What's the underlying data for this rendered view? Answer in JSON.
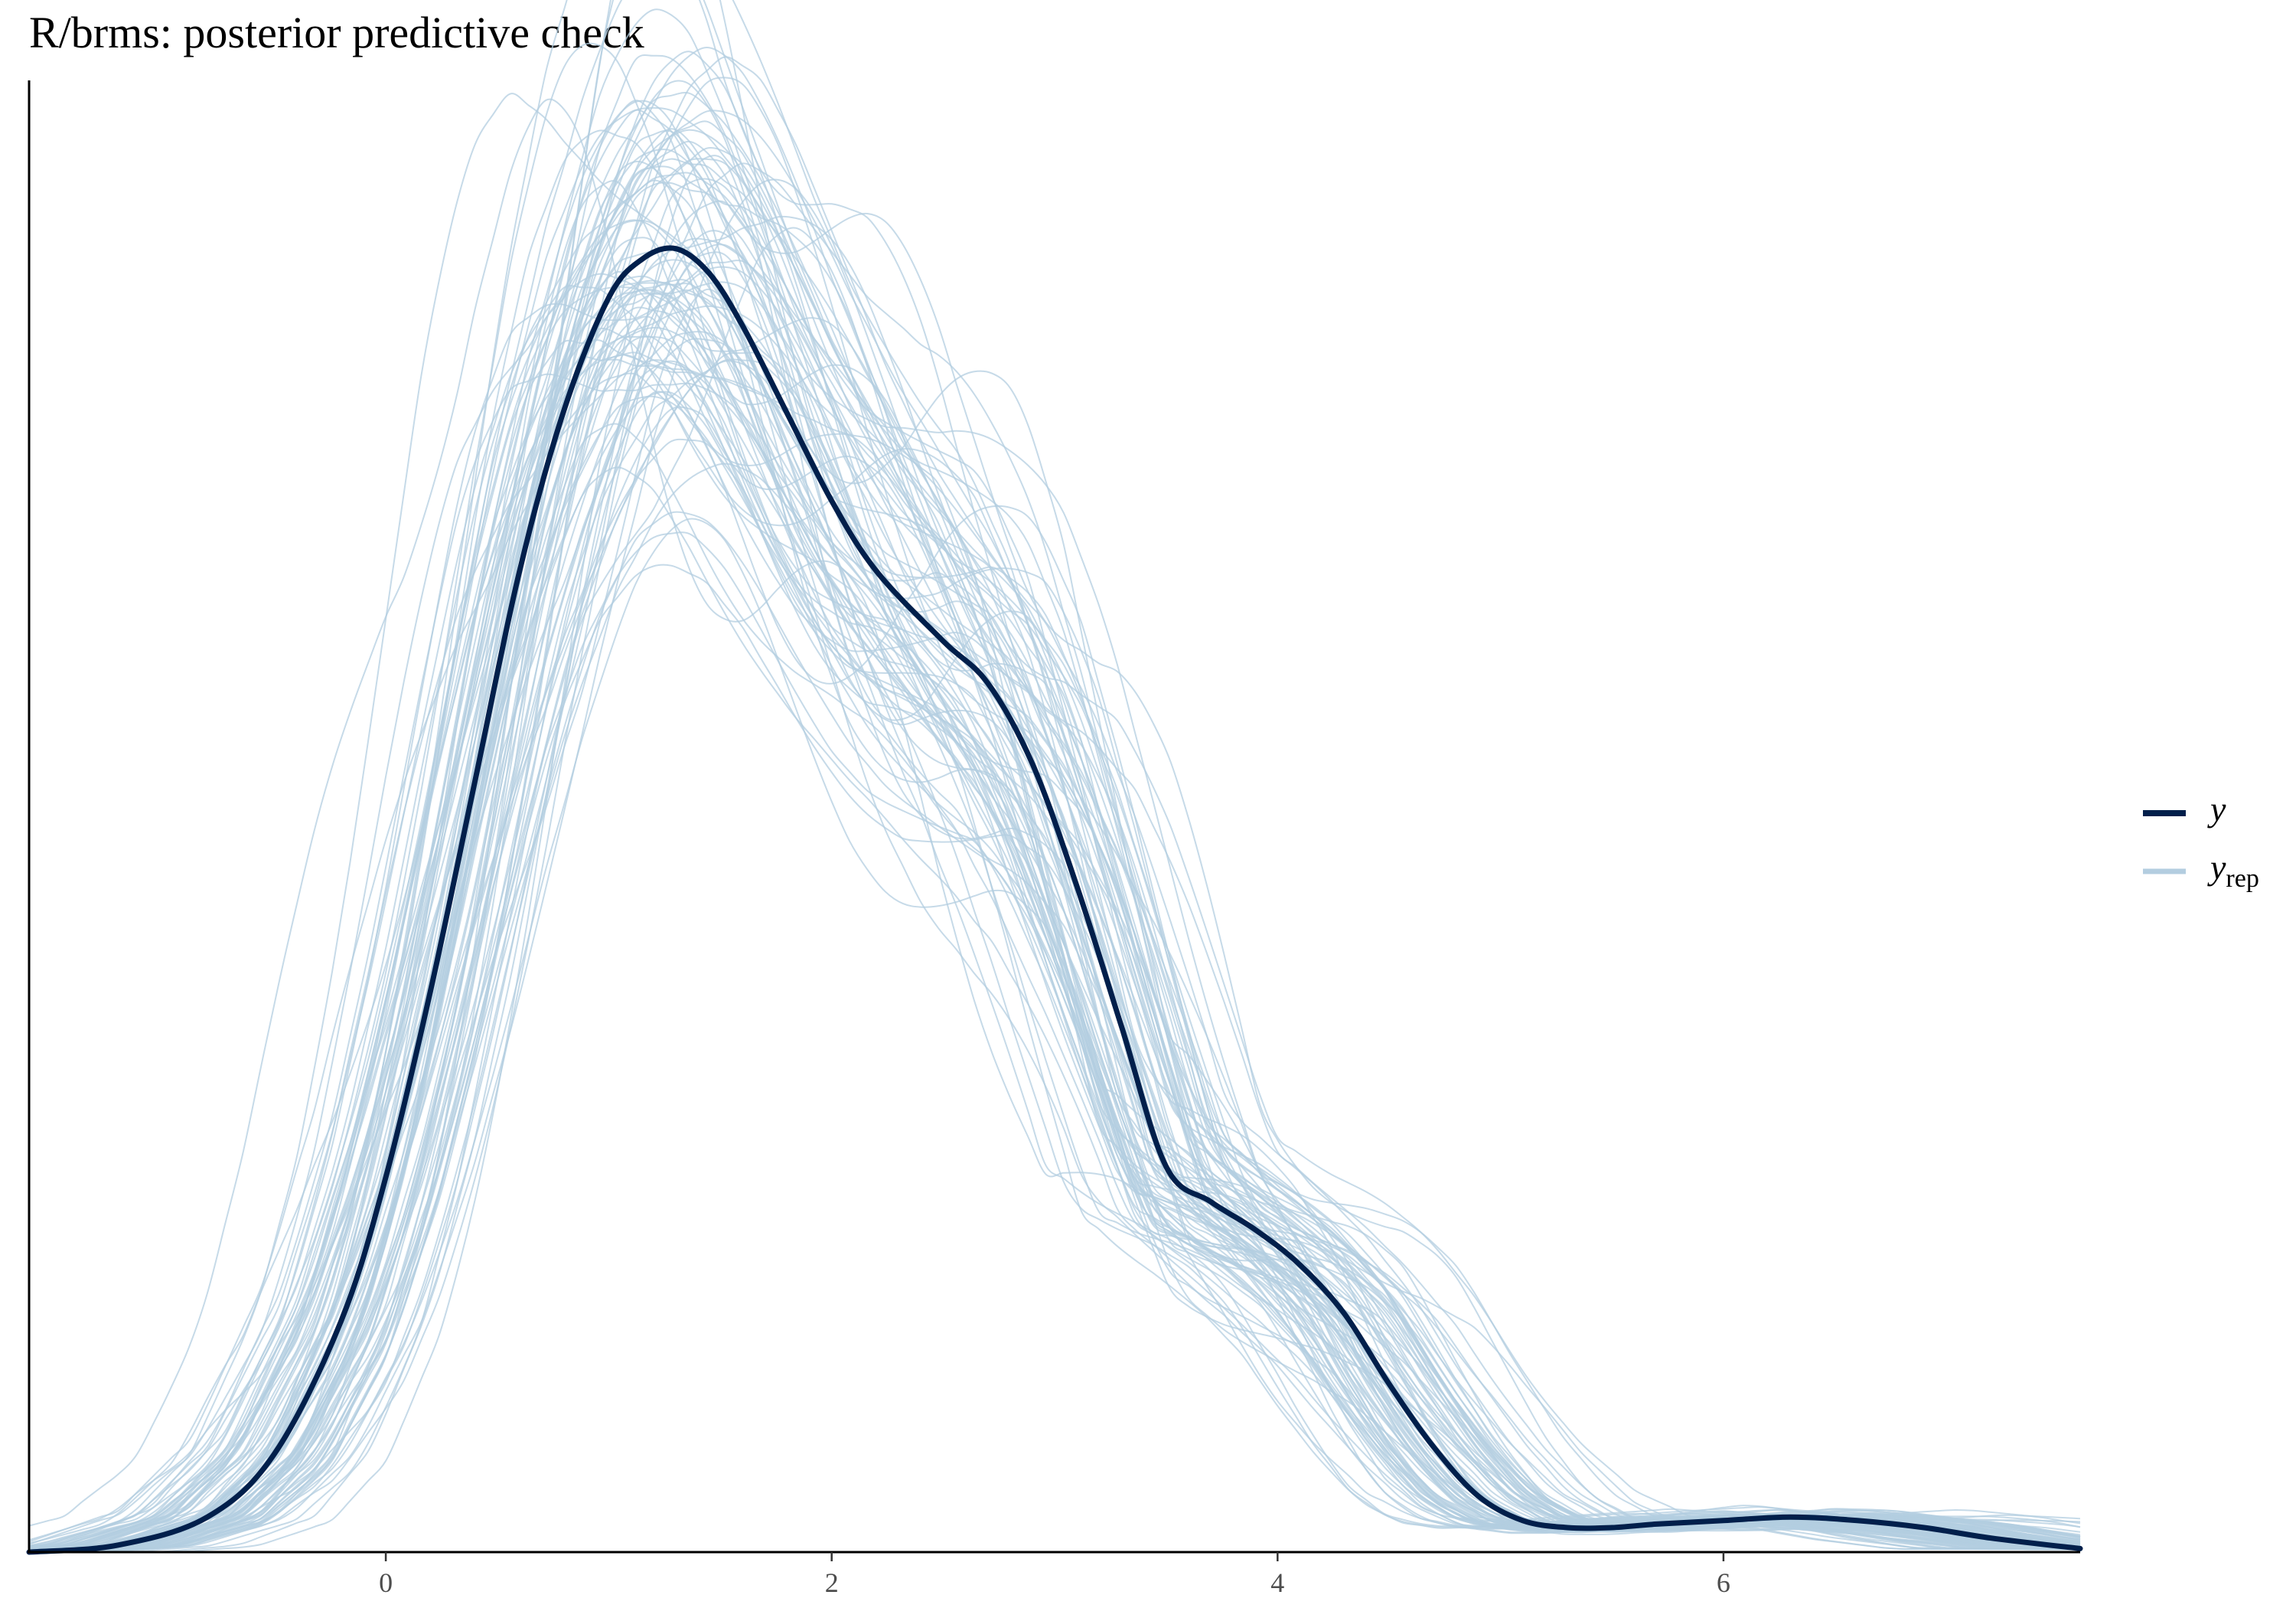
{
  "chart_data": {
    "type": "line",
    "title": "R/brms: posterior predictive check",
    "xlabel": "",
    "ylabel": "",
    "xlim": [
      -1.6,
      7.6
    ],
    "ylim": [
      0,
      0.42
    ],
    "x_ticks": [
      0,
      2,
      4,
      6
    ],
    "x_tick_labels": [
      "0",
      "2",
      "4",
      "6"
    ],
    "grid": false,
    "legend_position": "right",
    "legend": [
      {
        "key": "y",
        "label": "y",
        "subscript": "",
        "color": "#011f4b"
      },
      {
        "key": "yrep",
        "label": "y",
        "subscript": "rep",
        "color": "#b3cde0"
      }
    ],
    "colors": {
      "y": "#011f4b",
      "yrep": "#b3cde0",
      "axis": "#000000",
      "tick_text": "#4d4d4d"
    },
    "yrep_draws": 100,
    "series": [
      {
        "name": "y",
        "x": [
          -1.6,
          -1.2,
          -0.8,
          -0.5,
          -0.2,
          0.0,
          0.2,
          0.4,
          0.6,
          0.8,
          1.0,
          1.15,
          1.3,
          1.45,
          1.6,
          1.8,
          2.0,
          2.2,
          2.5,
          2.7,
          2.9,
          3.1,
          3.3,
          3.5,
          3.7,
          3.9,
          4.1,
          4.3,
          4.5,
          4.7,
          4.9,
          5.1,
          5.3,
          5.5,
          5.7,
          6.0,
          6.3,
          6.6,
          6.9,
          7.2,
          7.6
        ],
        "y": [
          0.0,
          0.002,
          0.01,
          0.028,
          0.066,
          0.107,
          0.16,
          0.22,
          0.28,
          0.326,
          0.358,
          0.369,
          0.372,
          0.365,
          0.35,
          0.325,
          0.3,
          0.28,
          0.26,
          0.248,
          0.225,
          0.19,
          0.15,
          0.11,
          0.1,
          0.092,
          0.082,
          0.068,
          0.048,
          0.03,
          0.016,
          0.009,
          0.007,
          0.007,
          0.008,
          0.009,
          0.01,
          0.009,
          0.007,
          0.004,
          0.001
        ]
      }
    ]
  }
}
